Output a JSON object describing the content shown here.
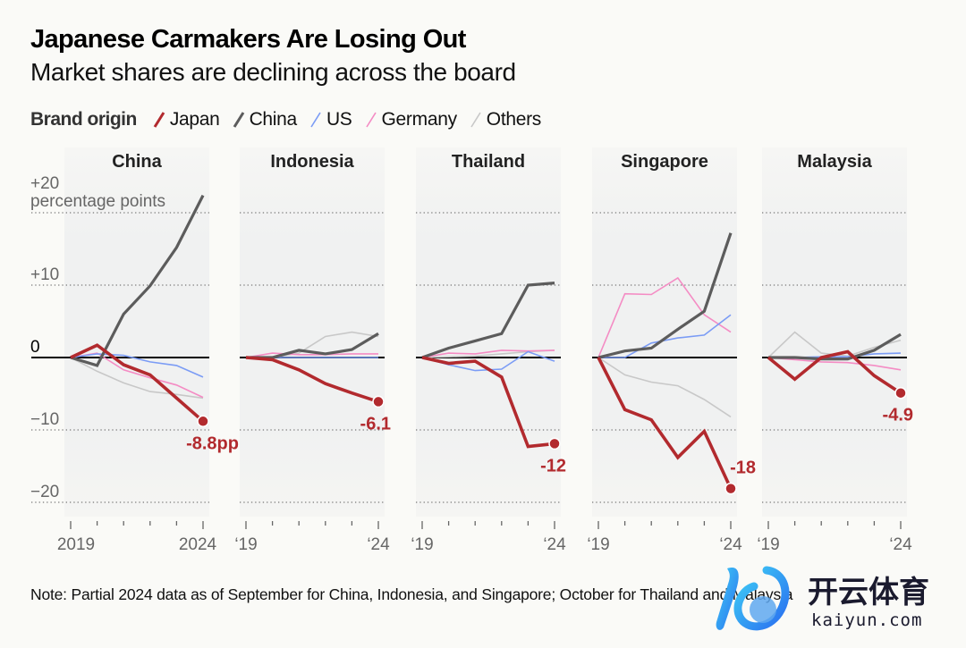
{
  "header": {
    "title": "Japanese Carmakers Are Losing Out",
    "subtitle": "Market shares are declining across the board"
  },
  "legend": {
    "title": "Brand origin",
    "items": [
      {
        "label": "Japan",
        "color": "#b22a2e"
      },
      {
        "label": "China",
        "color": "#5c5c5c"
      },
      {
        "label": "US",
        "color": "#7b9cf5"
      },
      {
        "label": "Germany",
        "color": "#f48cc4"
      },
      {
        "label": "Others",
        "color": "#c8c8c8"
      }
    ]
  },
  "note": "Note: Partial 2024 data as of September for China, Indonesia, and Singapore; October for Thailand and Malaysia",
  "watermark": {
    "brand_cn": "开云体育",
    "brand_en": "kaiyun.com"
  },
  "chart_data": {
    "type": "line",
    "title": "Japanese Carmakers Are Losing Out",
    "subtitle": "Market shares are declining across the board",
    "ylabel": "percentage points",
    "ylim": [
      -20,
      22
    ],
    "yticks": [
      20,
      10,
      0,
      -10,
      -20
    ],
    "ytick_labels": [
      "+20",
      "+10",
      "0",
      "−10",
      "−20"
    ],
    "ylabel_suffix": "percentage points",
    "grid": true,
    "legend_position": "top-left",
    "x": [
      2019,
      2020,
      2021,
      2022,
      2023,
      2024
    ],
    "series_names": [
      "Japan",
      "China",
      "US",
      "Germany",
      "Others"
    ],
    "panels": [
      {
        "name": "China",
        "xtick_labels": [
          "2019",
          "2024"
        ],
        "end_label": "-8.8pp",
        "series": [
          {
            "name": "Japan",
            "values": [
              0,
              1.7,
              -1.0,
              -2.4,
              -5.6,
              -8.8
            ]
          },
          {
            "name": "China",
            "values": [
              0,
              -1.1,
              6.0,
              9.9,
              15.2,
              22.4
            ]
          },
          {
            "name": "US",
            "values": [
              0,
              0.5,
              0.3,
              -0.6,
              -1.1,
              -2.7
            ]
          },
          {
            "name": "Germany",
            "values": [
              0,
              0.6,
              -1.7,
              -2.8,
              -3.8,
              -5.5
            ]
          },
          {
            "name": "Others",
            "values": [
              0,
              -1.9,
              -3.5,
              -4.7,
              -5.1,
              -5.6
            ]
          }
        ]
      },
      {
        "name": "Indonesia",
        "xtick_labels": [
          "‘19",
          "‘24"
        ],
        "end_label": "-6.1",
        "series": [
          {
            "name": "Japan",
            "values": [
              0,
              -0.3,
              -1.7,
              -3.6,
              -4.9,
              -6.1
            ]
          },
          {
            "name": "China",
            "values": [
              0,
              0,
              1.0,
              0.5,
              1.1,
              3.3
            ]
          },
          {
            "name": "US",
            "values": [
              0,
              0,
              0,
              0,
              0,
              0
            ]
          },
          {
            "name": "Germany",
            "values": [
              0,
              0.6,
              0.4,
              0.4,
              0.5,
              0.5
            ]
          },
          {
            "name": "Others",
            "values": [
              0,
              0,
              0.6,
              2.9,
              3.5,
              2.9
            ]
          }
        ]
      },
      {
        "name": "Thailand",
        "xtick_labels": [
          "‘19",
          "‘24"
        ],
        "end_label": "-12",
        "series": [
          {
            "name": "Japan",
            "values": [
              0,
              -0.8,
              -0.5,
              -2.7,
              -12.3,
              -11.9
            ]
          },
          {
            "name": "China",
            "values": [
              0,
              1.3,
              2.3,
              3.3,
              10.0,
              10.3
            ]
          },
          {
            "name": "US",
            "values": [
              0,
              -1.0,
              -1.8,
              -1.6,
              0.8,
              -0.5
            ]
          },
          {
            "name": "Germany",
            "values": [
              0,
              0.6,
              0.5,
              1.0,
              0.9,
              1.0
            ]
          },
          {
            "name": "Others",
            "values": [
              0,
              0.1,
              0.2,
              0.5,
              0.8,
              1.0
            ]
          }
        ]
      },
      {
        "name": "Singapore",
        "xtick_labels": [
          "‘19",
          "‘24"
        ],
        "end_label": "-18",
        "series": [
          {
            "name": "Japan",
            "values": [
              0,
              -7.2,
              -8.6,
              -13.8,
              -10.2,
              -18.1
            ]
          },
          {
            "name": "China",
            "values": [
              0,
              0.9,
              1.3,
              3.9,
              6.4,
              17.2
            ]
          },
          {
            "name": "US",
            "values": [
              0,
              0,
              2.0,
              2.7,
              3.1,
              5.9
            ]
          },
          {
            "name": "Germany",
            "values": [
              0,
              8.8,
              8.7,
              11.0,
              5.9,
              3.5
            ]
          },
          {
            "name": "Others",
            "values": [
              0,
              -2.4,
              -3.4,
              -3.9,
              -5.8,
              -8.2
            ]
          }
        ]
      },
      {
        "name": "Malaysia",
        "xtick_labels": [
          "‘19",
          "‘24"
        ],
        "end_label": "-4.9",
        "series": [
          {
            "name": "Japan",
            "values": [
              0,
              -3.0,
              0,
              0.8,
              -2.5,
              -4.9
            ]
          },
          {
            "name": "China",
            "values": [
              0,
              0,
              -0.2,
              -0.2,
              1.0,
              3.2
            ]
          },
          {
            "name": "US",
            "values": [
              0,
              0,
              0.1,
              0.1,
              0.5,
              0.6
            ]
          },
          {
            "name": "Germany",
            "values": [
              0,
              -0.3,
              -0.6,
              -0.7,
              -1.1,
              -1.7
            ]
          },
          {
            "name": "Others",
            "values": [
              0,
              3.5,
              0.6,
              0.2,
              1.4,
              2.4
            ]
          }
        ]
      }
    ]
  }
}
